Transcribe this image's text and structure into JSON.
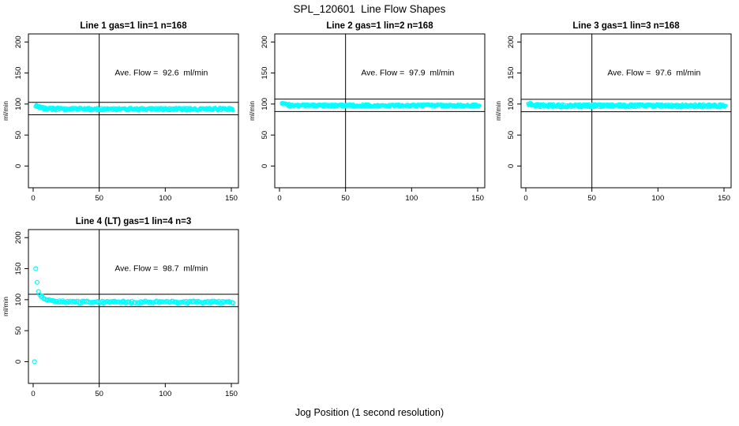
{
  "page": {
    "title": "SPL_120601  Line Flow Shapes",
    "xlabel": "Jog Position (1 second resolution)"
  },
  "colors": {
    "points": "#00ffff",
    "axis": "#000000",
    "background": "#ffffff"
  },
  "chart_data": [
    {
      "type": "scatter",
      "title": "Line 1 gas=1 lin=1 n=168",
      "annotation": "Ave. Flow =  92.6  ml/min",
      "ave_flow": 92.6,
      "n": 168,
      "ylabel": "ml/min",
      "xlim": [
        0,
        150
      ],
      "ylim": [
        0,
        200
      ],
      "xticks": [
        0,
        50,
        100,
        150
      ],
      "yticks": [
        0,
        50,
        100,
        150,
        200
      ],
      "vline_x": 50,
      "hlines": [
        102.6,
        82.6
      ],
      "marker": "open-circle",
      "marker_radius": 1.7,
      "band": {
        "x_start": 2,
        "x_end": 151,
        "y_start": 98,
        "y_settle": 91.8,
        "tau": 4,
        "half_spread": 2.4,
        "points_per_x": 3
      },
      "extra_points": []
    },
    {
      "type": "scatter",
      "title": "Line 2 gas=1 lin=2 n=168",
      "annotation": "Ave. Flow =  97.9  ml/min",
      "ave_flow": 97.9,
      "n": 168,
      "ylabel": "ml/min",
      "xlim": [
        0,
        150
      ],
      "ylim": [
        0,
        200
      ],
      "xticks": [
        0,
        50,
        100,
        150
      ],
      "yticks": [
        0,
        50,
        100,
        150,
        200
      ],
      "vline_x": 50,
      "hlines": [
        107.9,
        87.9
      ],
      "marker": "open-circle",
      "marker_radius": 1.7,
      "band": {
        "x_start": 2,
        "x_end": 151,
        "y_start": 102,
        "y_settle": 97.5,
        "tau": 3,
        "half_spread": 2.2,
        "points_per_x": 3
      },
      "extra_points": []
    },
    {
      "type": "scatter",
      "title": "Line 3 gas=1 lin=3 n=168",
      "annotation": "Ave. Flow =  97.6  ml/min",
      "ave_flow": 97.6,
      "n": 168,
      "ylabel": "ml/min",
      "xlim": [
        0,
        150
      ],
      "ylim": [
        0,
        200
      ],
      "xticks": [
        0,
        50,
        100,
        150
      ],
      "yticks": [
        0,
        50,
        100,
        150,
        200
      ],
      "vline_x": 50,
      "hlines": [
        107.6,
        87.6
      ],
      "marker": "open-circle",
      "marker_radius": 1.7,
      "band": {
        "x_start": 2,
        "x_end": 151,
        "y_start": 101,
        "y_settle": 97.2,
        "tau": 3,
        "half_spread": 2.8,
        "points_per_x": 3
      },
      "extra_points": []
    },
    {
      "type": "scatter",
      "title": "Line 4 (LT) gas=1 lin=4 n=3",
      "annotation": "Ave. Flow =  98.7  ml/min",
      "ave_flow": 98.7,
      "n": 3,
      "ylabel": "ml/min",
      "xlim": [
        0,
        150
      ],
      "ylim": [
        0,
        200
      ],
      "xticks": [
        0,
        50,
        100,
        150
      ],
      "yticks": [
        0,
        50,
        100,
        150,
        200
      ],
      "vline_x": 50,
      "hlines": [
        108.7,
        88.7
      ],
      "marker": "open-circle",
      "marker_radius": 2.5,
      "band": {
        "x_start": 6,
        "x_end": 151,
        "y_start": 106,
        "y_settle": 96.2,
        "tau": 6,
        "half_spread": 1.6,
        "points_per_x": 1
      },
      "extra_points": [
        [
          1,
          0
        ],
        [
          2,
          150
        ],
        [
          3,
          128
        ],
        [
          4,
          113
        ],
        [
          5,
          108
        ]
      ]
    }
  ]
}
